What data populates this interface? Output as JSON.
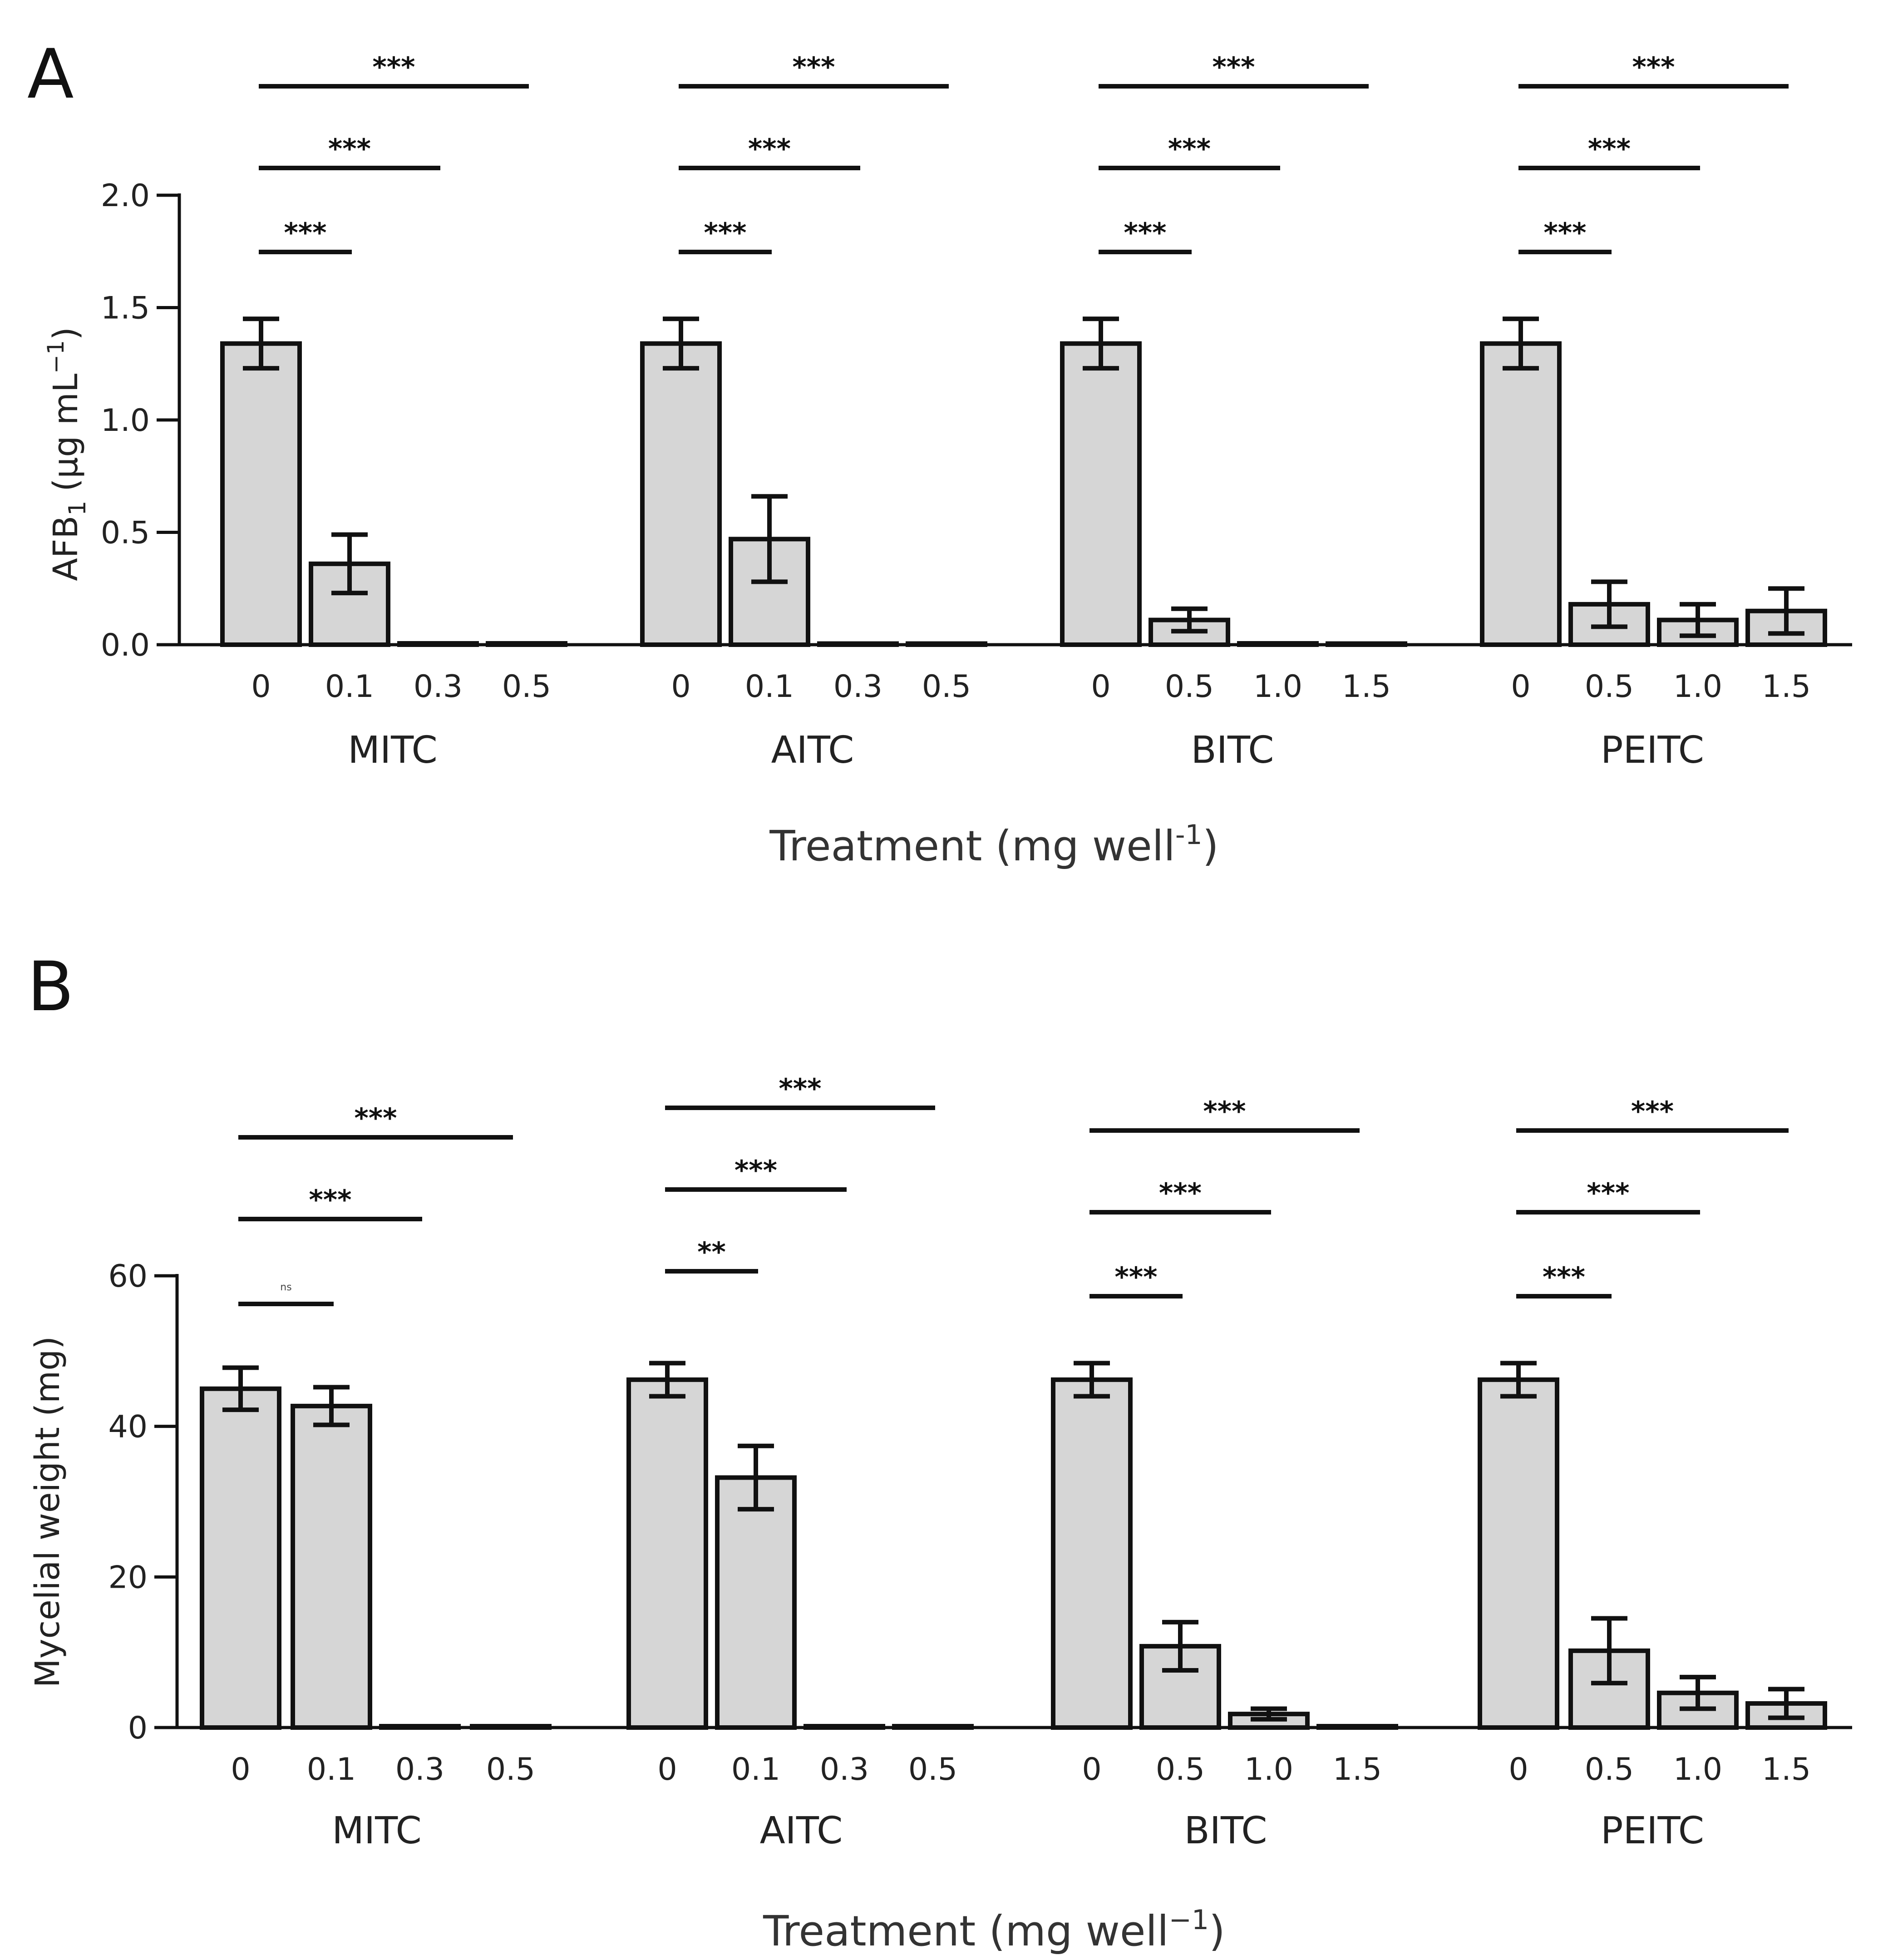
{
  "chart_data": [
    {
      "panel": "A",
      "type": "bar",
      "ylabel": "AFB1 (µg mL−1)",
      "ylabel_main": "AFB",
      "ylabel_sub": "1",
      "ylabel_units": "(µg mL",
      "ylabel_sup": "−1",
      "ylabel_close": ")",
      "xlabel": "Treatment (mg well-1)",
      "xlabel_main": "Treatment (mg well",
      "xlabel_sup": "-1",
      "xlabel_close": ")",
      "ylim": [
        0,
        2.0
      ],
      "yticks": [
        "0.0",
        "0.5",
        "1.0",
        "1.5",
        "2.0"
      ],
      "groups": [
        {
          "name": "MITC",
          "categories": [
            "0",
            "0.1",
            "0.3",
            "0.5"
          ],
          "values": [
            1.34,
            0.36,
            0,
            0
          ],
          "errors": [
            0.11,
            0.13,
            0,
            0
          ],
          "significance": [
            {
              "to": 1,
              "label": "***"
            },
            {
              "to": 2,
              "label": "***"
            },
            {
              "to": 3,
              "label": "***"
            }
          ]
        },
        {
          "name": "AITC",
          "categories": [
            "0",
            "0.1",
            "0.3",
            "0.5"
          ],
          "values": [
            1.34,
            0.47,
            0.005,
            0.005
          ],
          "errors": [
            0.11,
            0.19,
            0,
            0
          ],
          "significance": [
            {
              "to": 1,
              "label": "***"
            },
            {
              "to": 2,
              "label": "***"
            },
            {
              "to": 3,
              "label": "***"
            }
          ]
        },
        {
          "name": "BITC",
          "categories": [
            "0",
            "0.5",
            "1.0",
            "1.5"
          ],
          "values": [
            1.34,
            0.11,
            0,
            0.005
          ],
          "errors": [
            0.11,
            0.05,
            0,
            0
          ],
          "significance": [
            {
              "to": 1,
              "label": "***"
            },
            {
              "to": 2,
              "label": "***"
            },
            {
              "to": 3,
              "label": "***"
            }
          ]
        },
        {
          "name": "PEITC",
          "categories": [
            "0",
            "0.5",
            "1.0",
            "1.5"
          ],
          "values": [
            1.34,
            0.18,
            0.11,
            0.15
          ],
          "errors": [
            0.11,
            0.1,
            0.07,
            0.1
          ],
          "significance": [
            {
              "to": 1,
              "label": "***"
            },
            {
              "to": 2,
              "label": "***"
            },
            {
              "to": 3,
              "label": "***"
            }
          ]
        }
      ]
    },
    {
      "panel": "B",
      "type": "bar",
      "ylabel": "Mycelial weight (mg)",
      "xlabel": "Treatment (mg well−1)",
      "xlabel_main": "Treatment (mg well",
      "xlabel_sup": "−1",
      "xlabel_close": ")",
      "ylim": [
        0,
        60
      ],
      "yticks": [
        "0",
        "20",
        "40",
        "60"
      ],
      "groups": [
        {
          "name": "MITC",
          "categories": [
            "0",
            "0.1",
            "0.3",
            "0.5"
          ],
          "values": [
            45,
            42.7,
            0,
            0
          ],
          "errors": [
            2.8,
            2.5,
            0,
            0
          ],
          "significance": [
            {
              "to": 1,
              "label": "ns"
            },
            {
              "to": 2,
              "label": "***"
            },
            {
              "to": 3,
              "label": "***"
            }
          ]
        },
        {
          "name": "AITC",
          "categories": [
            "0",
            "0.1",
            "0.3",
            "0.5"
          ],
          "values": [
            46.2,
            33.2,
            0,
            0
          ],
          "errors": [
            2.2,
            4.2,
            0,
            0
          ],
          "significance": [
            {
              "to": 1,
              "label": "**"
            },
            {
              "to": 2,
              "label": "***"
            },
            {
              "to": 3,
              "label": "***"
            }
          ]
        },
        {
          "name": "BITC",
          "categories": [
            "0",
            "0.5",
            "1.0",
            "1.5"
          ],
          "values": [
            46.2,
            10.8,
            1.8,
            0
          ],
          "errors": [
            2.2,
            3.2,
            0.7,
            0
          ],
          "significance": [
            {
              "to": 1,
              "label": "***"
            },
            {
              "to": 2,
              "label": "***"
            },
            {
              "to": 3,
              "label": "***"
            }
          ]
        },
        {
          "name": "PEITC",
          "categories": [
            "0",
            "0.5",
            "1.0",
            "1.5"
          ],
          "values": [
            46.2,
            10.2,
            4.6,
            3.2
          ],
          "errors": [
            2.2,
            4.3,
            2.1,
            1.9
          ],
          "significance": [
            {
              "to": 1,
              "label": "***"
            },
            {
              "to": 2,
              "label": "***"
            },
            {
              "to": 3,
              "label": "***"
            }
          ]
        }
      ]
    }
  ]
}
